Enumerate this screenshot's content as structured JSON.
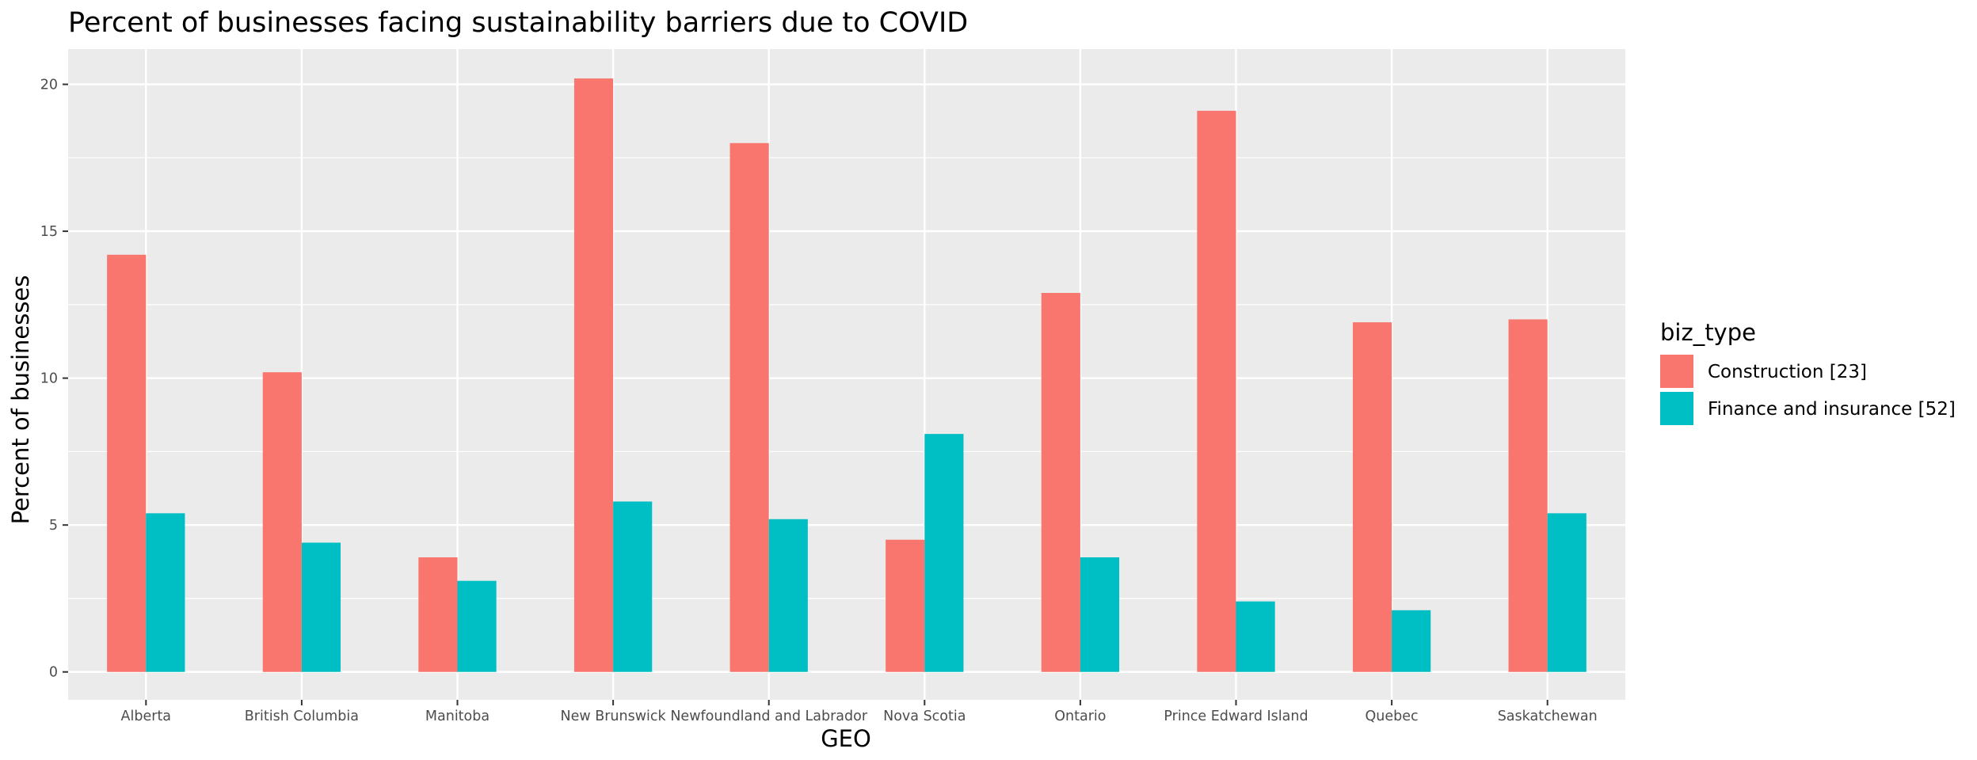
{
  "chart_data": {
    "type": "bar",
    "title": "Percent of businesses facing sustainability barriers due to COVID",
    "xlabel": "GEO",
    "ylabel": "Percent of businesses",
    "categories": [
      "Alberta",
      "British Columbia",
      "Manitoba",
      "New Brunswick",
      "Newfoundland and Labrador",
      "Nova Scotia",
      "Ontario",
      "Prince Edward Island",
      "Quebec",
      "Saskatchewan"
    ],
    "series": [
      {
        "name": "Construction [23]",
        "color": "#F8766D",
        "values": [
          14.2,
          10.2,
          3.9,
          20.2,
          18.0,
          4.5,
          12.9,
          19.1,
          11.9,
          12.0
        ]
      },
      {
        "name": "Finance and insurance [52]",
        "color": "#00BFC4",
        "values": [
          5.4,
          4.4,
          3.1,
          5.8,
          5.2,
          8.1,
          3.9,
          2.4,
          2.1,
          5.4
        ]
      }
    ],
    "ylim": [
      -0.95,
      21.2
    ],
    "yticks": [
      0,
      5,
      10,
      15,
      20
    ],
    "grid": true,
    "panel_background": "#EBEBEB",
    "legend": {
      "title": "biz_type",
      "position": "right"
    }
  }
}
